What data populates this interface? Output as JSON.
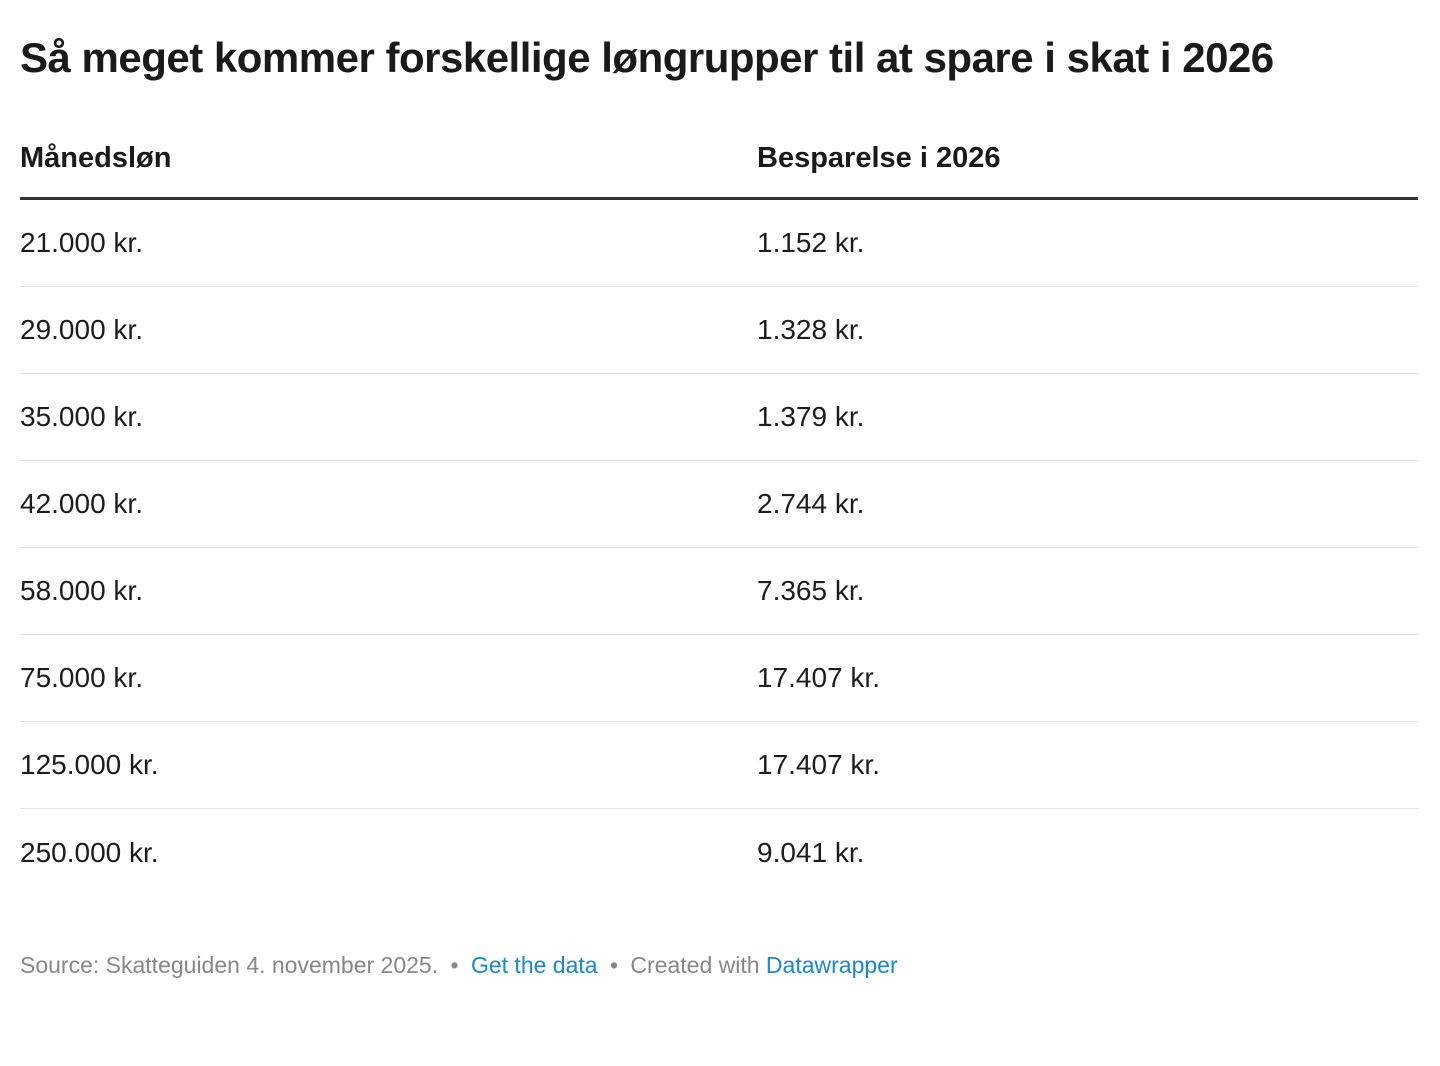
{
  "title": "Så meget kommer forskellige løngrupper til at spare i skat i 2026",
  "table": {
    "columns": [
      "Månedsløn",
      "Besparelse i 2026"
    ],
    "rows": [
      {
        "salary": "21.000 kr.",
        "savings": "1.152 kr."
      },
      {
        "salary": "29.000 kr.",
        "savings": "1.328 kr."
      },
      {
        "salary": "35.000 kr.",
        "savings": "1.379 kr."
      },
      {
        "salary": "42.000 kr.",
        "savings": "2.744 kr."
      },
      {
        "salary": "58.000 kr.",
        "savings": "7.365 kr."
      },
      {
        "salary": "75.000 kr.",
        "savings": "17.407 kr."
      },
      {
        "salary": "125.000 kr.",
        "savings": "17.407 kr."
      },
      {
        "salary": "250.000 kr.",
        "savings": "9.041 kr."
      }
    ]
  },
  "footer": {
    "source_text": "Source: Skatteguiden 4. november 2025.",
    "separator": "•",
    "get_data_label": "Get the data",
    "created_with_label": "Created with",
    "datawrapper_label": "Datawrapper"
  },
  "colors": {
    "text": "#1d1d1d",
    "footer_text": "#878787",
    "link_blue": "#1e87c8",
    "header_rule": "#333333",
    "row_divider": "#e3e3e3",
    "background": "#ffffff"
  },
  "chart_data": {
    "type": "table",
    "title": "Så meget kommer forskellige løngrupper til at spare i skat i 2026",
    "columns": [
      "Månedsløn",
      "Besparelse i 2026"
    ],
    "rows": [
      [
        "21.000 kr.",
        "1.152 kr."
      ],
      [
        "29.000 kr.",
        "1.328 kr."
      ],
      [
        "35.000 kr.",
        "1.379 kr."
      ],
      [
        "42.000 kr.",
        "2.744 kr."
      ],
      [
        "58.000 kr.",
        "7.365 kr."
      ],
      [
        "75.000 kr.",
        "17.407 kr."
      ],
      [
        "125.000 kr.",
        "17.407 kr."
      ],
      [
        "250.000 kr.",
        "9.041 kr."
      ]
    ],
    "numeric": {
      "monthly_salary_kr": [
        21000,
        29000,
        35000,
        42000,
        58000,
        75000,
        125000,
        250000
      ],
      "savings_2026_kr": [
        1152,
        1328,
        1379,
        2744,
        7365,
        17407,
        17407,
        9041
      ]
    },
    "source": "Skatteguiden 4. november 2025."
  }
}
